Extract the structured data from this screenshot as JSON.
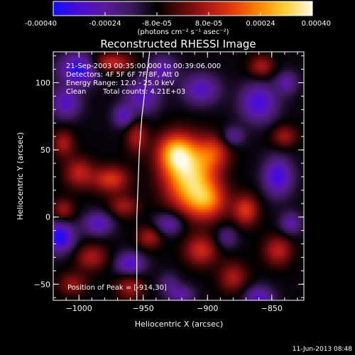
{
  "chart_data": {
    "type": "heatmap",
    "title": "Reconstructed RHESSI Image",
    "xlabel": "Heliocentric X (arcsec)",
    "ylabel": "Heliocentric Y (arcsec)",
    "x_ticks": [
      -1000,
      -950,
      -900,
      -850
    ],
    "y_ticks": [
      -50,
      0,
      50,
      100
    ],
    "xlim": [
      -1020,
      -825
    ],
    "ylim": [
      -62,
      123
    ],
    "colorbar": {
      "label": "(photons cm⁻² s⁻¹ asec⁻²)",
      "range": [
        -0.0004,
        0.0004
      ],
      "tick_labels": [
        "-0.00040",
        "-0.00024",
        "-8.0e-05",
        "8.0e-05",
        "0.00024",
        "0.00040"
      ],
      "tick_values": [
        -0.0004,
        -0.00024,
        -8e-05,
        8e-05,
        0.00024,
        0.0004
      ],
      "colormap": [
        "#1010ff",
        "#4b0cd6",
        "#5a1a9e",
        "#3b1a5a",
        "#000000",
        "#5a0a0a",
        "#b01818",
        "#e8400a",
        "#ff8a00",
        "#ffd23a",
        "#fffbe6"
      ]
    },
    "annotations": [
      "21-Sep-2003 00:35:00.000 to 00:39:06.000",
      "Detectors: 4F 5F 6F 7F 8F, Att 0",
      "Energy Range: 12.0 - 25.0 keV",
      "Clean",
      "Total counts: 4.21E+03"
    ],
    "peak_label": "Position of Peak = [-914,30]",
    "peak": {
      "x": -914,
      "y": 30
    },
    "sources": [
      {
        "x": -914,
        "y": 30,
        "sx": 14,
        "sy": 17,
        "amp": 0.0004
      },
      {
        "x": -925,
        "y": 48,
        "sx": 10,
        "sy": 10,
        "amp": 0.0003
      },
      {
        "x": -900,
        "y": 12,
        "sx": 11,
        "sy": 10,
        "amp": 0.00024
      },
      {
        "x": -895,
        "y": 48,
        "sx": 9,
        "sy": 9,
        "amp": 0.00018
      },
      {
        "x": -975,
        "y": 28,
        "sx": 10,
        "sy": 7,
        "amp": 0.00022
      },
      {
        "x": -1000,
        "y": 33,
        "sx": 8,
        "sy": 8,
        "amp": 0.00018
      },
      {
        "x": -1012,
        "y": 55,
        "sx": 6,
        "sy": 7,
        "amp": 0.00016
      },
      {
        "x": -1012,
        "y": 5,
        "sx": 6,
        "sy": 6,
        "amp": 0.00015
      },
      {
        "x": -975,
        "y": 115,
        "sx": 12,
        "sy": 5,
        "amp": 0.0002
      },
      {
        "x": -955,
        "y": 60,
        "sx": 6,
        "sy": 9,
        "amp": 0.00016
      },
      {
        "x": -965,
        "y": 8,
        "sx": 8,
        "sy": 6,
        "amp": 0.00015
      },
      {
        "x": -945,
        "y": -15,
        "sx": 7,
        "sy": 6,
        "amp": 0.00016
      },
      {
        "x": -905,
        "y": -25,
        "sx": 9,
        "sy": 8,
        "amp": 0.0002
      },
      {
        "x": -880,
        "y": -45,
        "sx": 8,
        "sy": 8,
        "amp": 0.00016
      },
      {
        "x": -870,
        "y": 5,
        "sx": 7,
        "sy": 8,
        "amp": 0.00022
      },
      {
        "x": -845,
        "y": -25,
        "sx": 8,
        "sy": 8,
        "amp": 0.00018
      },
      {
        "x": -840,
        "y": 60,
        "sx": 7,
        "sy": 6,
        "amp": 0.00015
      },
      {
        "x": -858,
        "y": 112,
        "sx": 7,
        "sy": 6,
        "amp": 0.00016
      },
      {
        "x": -990,
        "y": -30,
        "sx": 9,
        "sy": 7,
        "amp": 0.00016
      },
      {
        "x": -1005,
        "y": -50,
        "sx": 8,
        "sy": 6,
        "amp": 0.00014
      },
      {
        "x": -960,
        "y": -52,
        "sx": 8,
        "sy": 7,
        "amp": 0.00015
      },
      {
        "x": -930,
        "y": -50,
        "sx": 6,
        "sy": 6,
        "amp": -0.0001
      },
      {
        "x": -1000,
        "y": 110,
        "sx": 10,
        "sy": 8,
        "amp": -0.0003
      },
      {
        "x": -1010,
        "y": 85,
        "sx": 8,
        "sy": 8,
        "amp": -0.0002
      },
      {
        "x": -1015,
        "y": -15,
        "sx": 8,
        "sy": 8,
        "amp": -0.0003
      },
      {
        "x": -985,
        "y": -5,
        "sx": 8,
        "sy": 6,
        "amp": -0.0002
      },
      {
        "x": -950,
        "y": 90,
        "sx": 9,
        "sy": 9,
        "amp": -0.0002
      },
      {
        "x": -935,
        "y": 110,
        "sx": 8,
        "sy": 7,
        "amp": -0.00018
      },
      {
        "x": -965,
        "y": 75,
        "sx": 6,
        "sy": 6,
        "amp": -0.00018
      },
      {
        "x": -960,
        "y": -35,
        "sx": 8,
        "sy": 6,
        "amp": -0.00022
      },
      {
        "x": -930,
        "y": -5,
        "sx": 8,
        "sy": 6,
        "amp": -0.00018
      },
      {
        "x": -905,
        "y": 95,
        "sx": 10,
        "sy": 8,
        "amp": -0.0002
      },
      {
        "x": -860,
        "y": 85,
        "sx": 10,
        "sy": 10,
        "amp": -0.00024
      },
      {
        "x": -845,
        "y": 30,
        "sx": 8,
        "sy": 10,
        "amp": -0.00025
      },
      {
        "x": -838,
        "y": 100,
        "sx": 6,
        "sy": 6,
        "amp": -0.00015
      },
      {
        "x": -880,
        "y": 60,
        "sx": 6,
        "sy": 5,
        "amp": -0.00015
      },
      {
        "x": -860,
        "y": -60,
        "sx": 8,
        "sy": 6,
        "amp": -0.0002
      },
      {
        "x": -920,
        "y": -58,
        "sx": 7,
        "sy": 5,
        "amp": -0.00015
      },
      {
        "x": -835,
        "y": -5,
        "sx": 6,
        "sy": 6,
        "amp": -0.00016
      },
      {
        "x": -885,
        "y": -15,
        "sx": 6,
        "sy": 6,
        "amp": -0.00012
      }
    ],
    "background_level": -9e-05,
    "limb_curve": [
      {
        "x": -945,
        "y": 123
      },
      {
        "x": -948,
        "y": 100
      },
      {
        "x": -951,
        "y": 75
      },
      {
        "x": -953,
        "y": 50
      },
      {
        "x": -954,
        "y": 25
      },
      {
        "x": -955,
        "y": 0
      },
      {
        "x": -955,
        "y": -25
      },
      {
        "x": -955,
        "y": -50
      },
      {
        "x": -955,
        "y": -62
      }
    ]
  },
  "footer": {
    "timestamp": "11-Jun-2013 08:48"
  }
}
